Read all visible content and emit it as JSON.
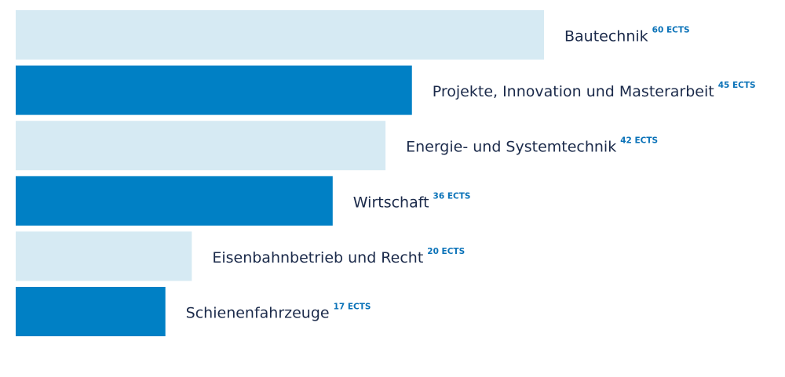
{
  "chart_data": {
    "type": "hbar",
    "categories": [
      "Bautechnik",
      "Projekte, Innovation und Masterarbeit",
      "Energie- und Systemtechnik",
      "Wirtschaft",
      "Eisenbahnbetrieb und Recht",
      "Schienenfahrzeuge"
    ],
    "values": [
      60,
      45,
      42,
      36,
      20,
      17
    ],
    "value_labels": [
      "60 ECTS",
      "45 ECTS",
      "42 ECTS",
      "36 ECTS",
      "20 ECTS",
      "17 ECTS"
    ],
    "colors": [
      "#d6eaf3",
      "#0080c5",
      "#d6eaf3",
      "#0080c5",
      "#d6eaf3",
      "#0080c5"
    ]
  }
}
